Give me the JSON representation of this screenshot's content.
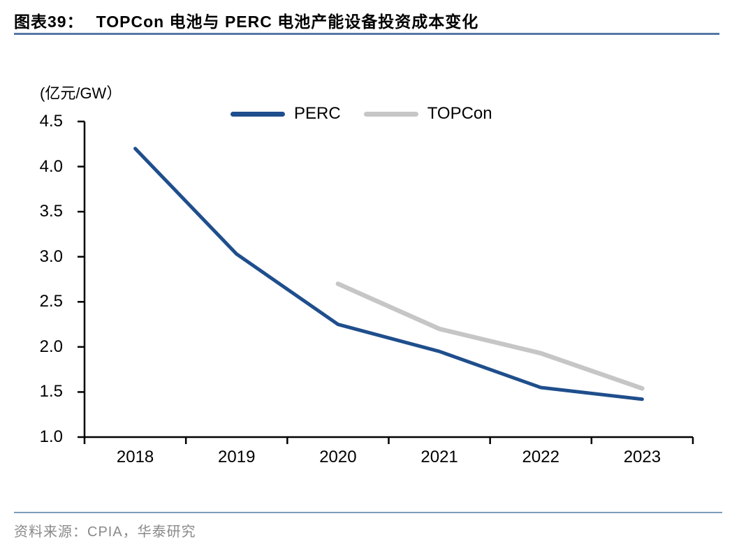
{
  "header": {
    "figure_label": "图表39：",
    "title": "TOPCon 电池与 PERC 电池产能设备投资成本变化"
  },
  "chart_data": {
    "type": "line",
    "title": "TOPCon 电池与 PERC 电池产能设备投资成本变化",
    "unit_label": "(亿元/GW）",
    "categories": [
      "2018",
      "2019",
      "2020",
      "2021",
      "2022",
      "2023"
    ],
    "series": [
      {
        "name": "PERC",
        "color": "#1F4E8C",
        "values": [
          4.2,
          3.03,
          2.25,
          1.95,
          1.55,
          1.42
        ]
      },
      {
        "name": "TOPCon",
        "color": "#C6C6C6",
        "values": [
          null,
          null,
          2.7,
          2.2,
          1.93,
          1.54
        ]
      }
    ],
    "ylim": [
      1.0,
      4.5
    ],
    "yticks": [
      4.5,
      4.0,
      3.5,
      3.0,
      2.5,
      2.0,
      1.5,
      1.0
    ],
    "xlabel": "",
    "ylabel": "(亿元/GW）",
    "grid": false,
    "legend_position": "top-center"
  },
  "footer": {
    "source": "资料来源：CPIA，华泰研究"
  },
  "colors": {
    "perc_line": "#1F4E8C",
    "topcon_line": "#C6C6C6",
    "title_rule": "#5578A6",
    "footer_rule": "#7E9BBB",
    "axis": "#000000",
    "source_text": "#8A8A8A"
  }
}
